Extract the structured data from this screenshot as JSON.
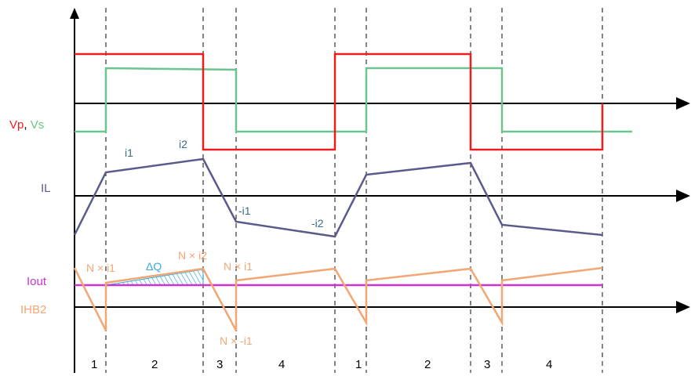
{
  "colors": {
    "vp": "#ee1c1c",
    "vs": "#6cc48e",
    "il": "#5a5a8c",
    "iout": "#cc33cc",
    "ihb2": "#f2a673",
    "dq": "#33aadd",
    "axis": "#000000",
    "annot": "#3a6a8a"
  },
  "labels": {
    "vp": "Vp",
    "comma": ", ",
    "vs": "Vs",
    "il": "IL",
    "iout": "Iout",
    "ihb2": "IHB2"
  },
  "annotations": {
    "i1": "i1",
    "i2": "i2",
    "neg_i1": "-i1",
    "neg_i2": "-i2",
    "n_i1_a": "N × i1",
    "dq": "ΔQ",
    "n_i2": "N × i2",
    "n_i1_b": "N × i1",
    "n_neg_i1": "N × -i1"
  },
  "intervals": [
    "1",
    "2",
    "3",
    "4",
    "1",
    "2",
    "3",
    "4"
  ]
}
